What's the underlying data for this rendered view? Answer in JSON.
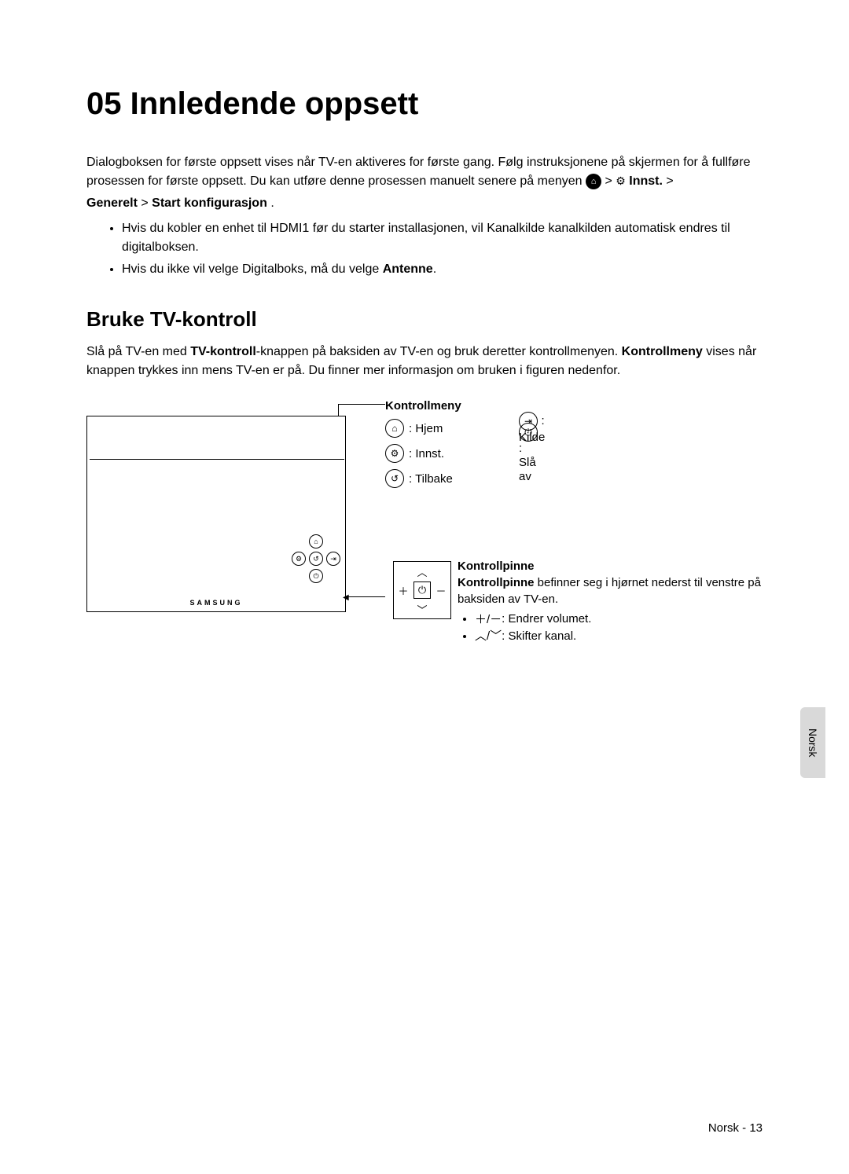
{
  "title": "05  Innledende oppsett",
  "intro": {
    "p1a": "Dialogboksen for første oppsett vises når TV-en aktiveres for første gang. Følg instruksjonene på skjermen for å fullføre prosessen for første oppsett. Du kan utføre denne prosessen manuelt senere på menyen ",
    "home_icon": "⌂",
    "sep1": " > ",
    "gear_icon": "⚙",
    "innst": " Innst.",
    "sep2": " > ",
    "generelt": "Generelt",
    "sep3": " > ",
    "startkonfig": "Start konfigurasjon",
    "period": "."
  },
  "bullets": [
    "Hvis du kobler en enhet til HDMI1 før du starter installasjonen, vil Kanalkilde kanalkilden automatisk endres til digitalboksen.",
    "Hvis du ikke vil velge Digitalboks, må du velge "
  ],
  "bullet2_bold": "Antenne",
  "bullet2_end": ".",
  "section": {
    "heading": "Bruke TV-kontroll",
    "text_a": "Slå på TV-en med ",
    "text_b_bold": "TV-kontroll",
    "text_c": "-knappen på baksiden av TV-en og bruk deretter kontrollmenyen. ",
    "text_d_bold": "Kontrollmeny",
    "text_e": " vises når knappen trykkes inn mens TV-en er på. Du finner mer informasjon om bruken i figuren nedenfor."
  },
  "tv_logo": "SAMSUNG",
  "kontrollmeny": {
    "title": "Kontrollmeny",
    "items": [
      {
        "icon": "⌂",
        "label": ": Hjem"
      },
      {
        "icon": "⚙",
        "label": ": Innst."
      },
      {
        "icon": "↺",
        "label": ": Tilbake"
      }
    ],
    "items_right": [
      {
        "icon": "⇥",
        "label": ": Kilde"
      },
      {
        "icon": "⏻",
        "label": ": Slå av"
      }
    ]
  },
  "stick": {
    "center": "⏻",
    "up": "︿",
    "down": "﹀",
    "left": "＋",
    "right": "－"
  },
  "kontrollpinne": {
    "title": "Kontrollpinne",
    "bold": "Kontrollpinne",
    "text": " befinner seg i hjørnet nederst til venstre på baksiden av TV-en.",
    "li1_glyph": "＋/－",
    "li1_text": ": Endrer volumet.",
    "li2_glyph": "︿/﹀",
    "li2_text": ": Skifter kanal."
  },
  "side_tab": "Norsk",
  "footer": "Norsk - 13"
}
